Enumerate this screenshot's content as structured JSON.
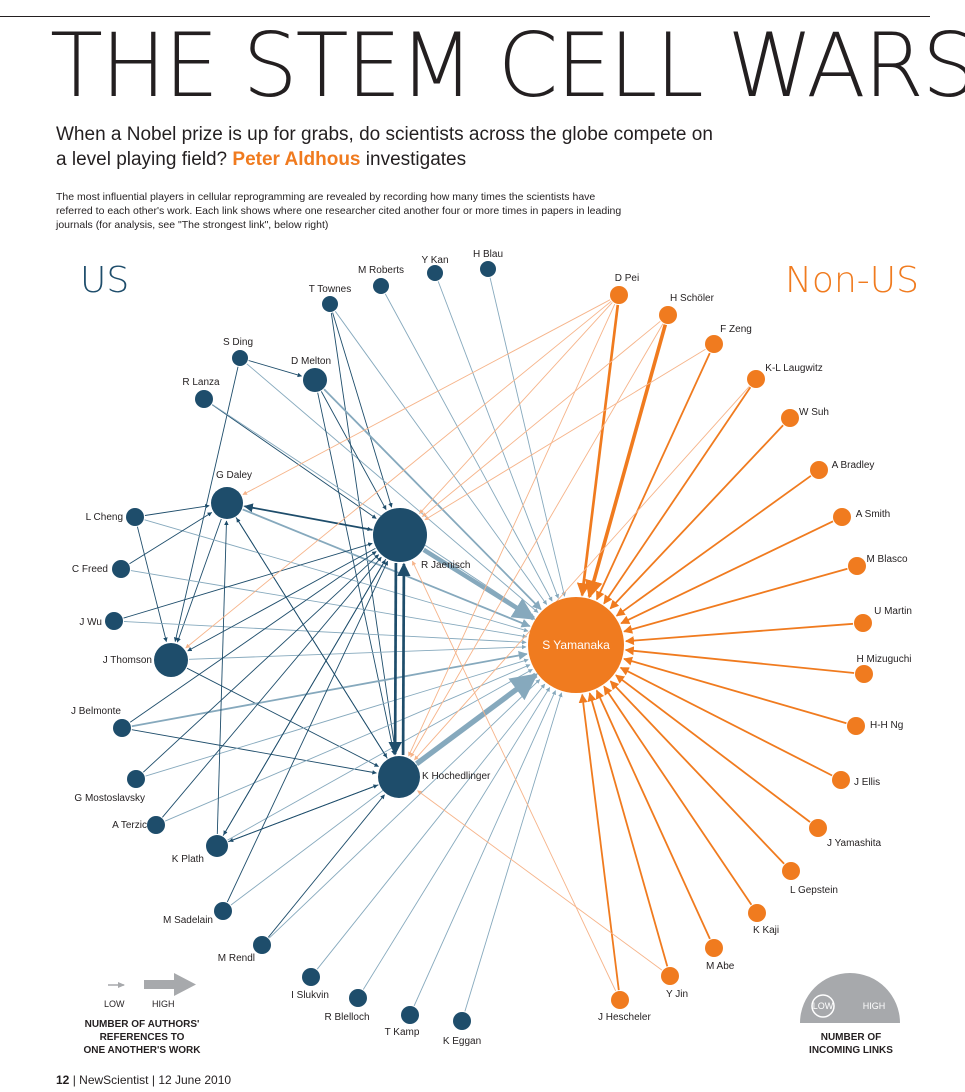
{
  "header": {
    "title": "THE STEM CELL WARS",
    "subtitle": "When a Nobel prize is up for grabs, do scientists across the globe compete on a level playing field?",
    "author": "Peter Aldhous",
    "author_suffix": "investigates",
    "intro": "The most influential players in cellular reprogramming are revealed by recording how many times the scientists have referred to each other's work. Each link shows where one researcher cited another four or more times in papers in leading journals (for analysis, see \"The strongest link\", below right)"
  },
  "groups": {
    "us": "US",
    "non_us": "Non-US"
  },
  "colors": {
    "us": "#1e4d6b",
    "us_link": "#86a9bd",
    "non_us": "#f07b1f",
    "non_us_link": "#f6b48a",
    "legend_gray": "#a7a9ac"
  },
  "us_nodes": [
    {
      "id": "mroberts",
      "label": "M Roberts"
    },
    {
      "id": "ykan",
      "label": "Y Kan"
    },
    {
      "id": "hblau",
      "label": "H Blau"
    },
    {
      "id": "ttownes",
      "label": "T Townes"
    },
    {
      "id": "sding",
      "label": "S Ding"
    },
    {
      "id": "dmelton",
      "label": "D Melton"
    },
    {
      "id": "rlanza",
      "label": "R Lanza"
    },
    {
      "id": "gdaley",
      "label": "G Daley"
    },
    {
      "id": "rjaenisch",
      "label": "R Jaenisch"
    },
    {
      "id": "lcheng",
      "label": "L Cheng"
    },
    {
      "id": "cfreed",
      "label": "C Freed"
    },
    {
      "id": "jwu",
      "label": "J Wu"
    },
    {
      "id": "jthomson",
      "label": "J Thomson"
    },
    {
      "id": "jbelmonte",
      "label": "J Belmonte"
    },
    {
      "id": "khochedlinger",
      "label": "K Hochedlinger"
    },
    {
      "id": "gmostoslavsky",
      "label": "G Mostoslavsky"
    },
    {
      "id": "aterzic",
      "label": "A Terzic"
    },
    {
      "id": "kplath",
      "label": "K Plath"
    },
    {
      "id": "msadelain",
      "label": "M Sadelain"
    },
    {
      "id": "mrendl",
      "label": "M Rendl"
    },
    {
      "id": "islukvin",
      "label": "I Slukvin"
    },
    {
      "id": "rblelloch",
      "label": "R Blelloch"
    },
    {
      "id": "tkamp",
      "label": "T Kamp"
    },
    {
      "id": "keggan",
      "label": "K Eggan"
    }
  ],
  "non_us_nodes": [
    {
      "id": "syamanaka",
      "label": "S Yamanaka"
    },
    {
      "id": "dpei",
      "label": "D Pei"
    },
    {
      "id": "hscholer",
      "label": "H Schöler"
    },
    {
      "id": "fzeng",
      "label": "F Zeng"
    },
    {
      "id": "kllaugwitz",
      "label": "K-L Laugwitz"
    },
    {
      "id": "wsuh",
      "label": "W Suh"
    },
    {
      "id": "abradley",
      "label": "A Bradley"
    },
    {
      "id": "asmith",
      "label": "A Smith"
    },
    {
      "id": "mblasco",
      "label": "M Blasco"
    },
    {
      "id": "umartin",
      "label": "U Martin"
    },
    {
      "id": "hmizuguchi",
      "label": "H Mizuguchi"
    },
    {
      "id": "hhng",
      "label": "H-H Ng"
    },
    {
      "id": "jellis",
      "label": "J Ellis"
    },
    {
      "id": "jyamashita",
      "label": "J Yamashita"
    },
    {
      "id": "lgepstein",
      "label": "L Gepstein"
    },
    {
      "id": "kkaji",
      "label": "K Kaji"
    },
    {
      "id": "mabe",
      "label": "M Abe"
    },
    {
      "id": "yjin",
      "label": "Y Jin"
    },
    {
      "id": "jhescheler",
      "label": "J Hescheler"
    }
  ],
  "links": [
    [
      "mroberts",
      "syamanaka",
      1
    ],
    [
      "ykan",
      "syamanaka",
      1
    ],
    [
      "hblau",
      "syamanaka",
      1
    ],
    [
      "ttownes",
      "syamanaka",
      1
    ],
    [
      "ttownes",
      "rjaenisch",
      1
    ],
    [
      "ttownes",
      "khochedlinger",
      1
    ],
    [
      "sding",
      "dmelton",
      1
    ],
    [
      "sding",
      "syamanaka",
      1
    ],
    [
      "sding",
      "jthomson",
      1
    ],
    [
      "dmelton",
      "rjaenisch",
      1
    ],
    [
      "dmelton",
      "khochedlinger",
      1
    ],
    [
      "dmelton",
      "syamanaka",
      2
    ],
    [
      "rlanza",
      "rjaenisch",
      1
    ],
    [
      "rlanza",
      "syamanaka",
      1
    ],
    [
      "gdaley",
      "rjaenisch",
      1
    ],
    [
      "gdaley",
      "khochedlinger",
      1
    ],
    [
      "gdaley",
      "syamanaka",
      2
    ],
    [
      "gdaley",
      "jthomson",
      1
    ],
    [
      "lcheng",
      "gdaley",
      1
    ],
    [
      "lcheng",
      "jthomson",
      1
    ],
    [
      "lcheng",
      "syamanaka",
      1
    ],
    [
      "cfreed",
      "gdaley",
      1
    ],
    [
      "cfreed",
      "syamanaka",
      1
    ],
    [
      "jwu",
      "syamanaka",
      1
    ],
    [
      "jwu",
      "rjaenisch",
      1
    ],
    [
      "jthomson",
      "syamanaka",
      1
    ],
    [
      "jthomson",
      "khochedlinger",
      1
    ],
    [
      "jbelmonte",
      "rjaenisch",
      1
    ],
    [
      "jbelmonte",
      "khochedlinger",
      1
    ],
    [
      "jbelmonte",
      "syamanaka",
      2
    ],
    [
      "gmostoslavsky",
      "rjaenisch",
      1
    ],
    [
      "gmostoslavsky",
      "syamanaka",
      1
    ],
    [
      "aterzic",
      "rjaenisch",
      1
    ],
    [
      "aterzic",
      "syamanaka",
      1
    ],
    [
      "kplath",
      "rjaenisch",
      1
    ],
    [
      "kplath",
      "khochedlinger",
      1
    ],
    [
      "kplath",
      "syamanaka",
      1
    ],
    [
      "kplath",
      "gdaley",
      1
    ],
    [
      "msadelain",
      "rjaenisch",
      1
    ],
    [
      "msadelain",
      "syamanaka",
      1
    ],
    [
      "mrendl",
      "khochedlinger",
      1
    ],
    [
      "mrendl",
      "syamanaka",
      1
    ],
    [
      "islukvin",
      "syamanaka",
      1
    ],
    [
      "rblelloch",
      "syamanaka",
      1
    ],
    [
      "tkamp",
      "syamanaka",
      1
    ],
    [
      "keggan",
      "syamanaka",
      1
    ],
    [
      "rjaenisch",
      "syamanaka",
      5
    ],
    [
      "khochedlinger",
      "syamanaka",
      6
    ],
    [
      "rjaenisch",
      "khochedlinger",
      3
    ],
    [
      "khochedlinger",
      "rjaenisch",
      3
    ],
    [
      "rjaenisch",
      "gdaley",
      2
    ],
    [
      "rjaenisch",
      "jthomson",
      1
    ],
    [
      "rjaenisch",
      "kplath",
      1
    ],
    [
      "khochedlinger",
      "gdaley",
      1
    ],
    [
      "khochedlinger",
      "kplath",
      1
    ],
    [
      "dpei",
      "syamanaka",
      3
    ],
    [
      "hscholer",
      "syamanaka",
      4
    ],
    [
      "fzeng",
      "syamanaka",
      2
    ],
    [
      "kllaugwitz",
      "syamanaka",
      2
    ],
    [
      "wsuh",
      "syamanaka",
      2
    ],
    [
      "abradley",
      "syamanaka",
      2
    ],
    [
      "asmith",
      "syamanaka",
      2
    ],
    [
      "mblasco",
      "syamanaka",
      2
    ],
    [
      "umartin",
      "syamanaka",
      2
    ],
    [
      "hmizuguchi",
      "syamanaka",
      2
    ],
    [
      "hhng",
      "syamanaka",
      2
    ],
    [
      "jellis",
      "syamanaka",
      2
    ],
    [
      "jyamashita",
      "syamanaka",
      2
    ],
    [
      "lgepstein",
      "syamanaka",
      2
    ],
    [
      "kkaji",
      "syamanaka",
      2
    ],
    [
      "mabe",
      "syamanaka",
      2
    ],
    [
      "yjin",
      "syamanaka",
      2
    ],
    [
      "jhescheler",
      "syamanaka",
      2
    ],
    [
      "dpei",
      "rjaenisch",
      1
    ],
    [
      "dpei",
      "khochedlinger",
      1
    ],
    [
      "dpei",
      "jthomson",
      1
    ],
    [
      "dpei",
      "gdaley",
      1
    ],
    [
      "hscholer",
      "rjaenisch",
      1
    ],
    [
      "hscholer",
      "khochedlinger",
      1
    ],
    [
      "fzeng",
      "rjaenisch",
      1
    ],
    [
      "kllaugwitz",
      "khochedlinger",
      1
    ],
    [
      "jhescheler",
      "rjaenisch",
      1
    ],
    [
      "yjin",
      "khochedlinger",
      1
    ]
  ],
  "legend_links": {
    "low": "LOW",
    "high": "HIGH",
    "caption": [
      "NUMBER OF AUTHORS'",
      "REFERENCES TO",
      "ONE ANOTHER'S WORK"
    ]
  },
  "legend_nodes": {
    "low": "LOW",
    "high": "HIGH",
    "caption": [
      "NUMBER OF",
      "INCOMING LINKS"
    ]
  },
  "footer": {
    "page": "12",
    "publication": "NewScientist",
    "date": "12 June 2010"
  }
}
